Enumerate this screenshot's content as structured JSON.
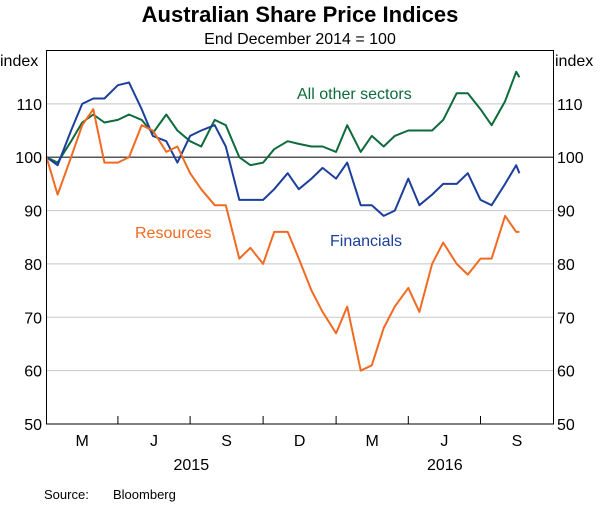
{
  "chart_data": {
    "type": "line",
    "title": "Australian Share Price Indices",
    "subtitle": "End December 2014 = 100",
    "ylabel_left": "index",
    "ylabel_right": "index",
    "ylim": [
      50,
      120
    ],
    "yticks": [
      50,
      60,
      70,
      80,
      90,
      100,
      110
    ],
    "xlim": [
      "2015-01-01",
      "2016-10-01"
    ],
    "xtick_months": [
      "M",
      "J",
      "S",
      "D",
      "M",
      "J",
      "S"
    ],
    "xtick_years": [
      "2015",
      "2016"
    ],
    "grid": true,
    "reference_line": 100,
    "source_label": "Source:",
    "source": "Bloomberg",
    "x": [
      "2015-01-01",
      "2015-01-15",
      "2015-02-01",
      "2015-02-15",
      "2015-03-01",
      "2015-03-15",
      "2015-04-01",
      "2015-04-15",
      "2015-05-01",
      "2015-05-15",
      "2015-06-01",
      "2015-06-15",
      "2015-07-01",
      "2015-07-15",
      "2015-08-01",
      "2015-08-15",
      "2015-09-01",
      "2015-09-15",
      "2015-10-01",
      "2015-10-15",
      "2015-11-01",
      "2015-11-15",
      "2015-12-01",
      "2015-12-15",
      "2016-01-01",
      "2016-01-15",
      "2016-02-01",
      "2016-02-15",
      "2016-03-01",
      "2016-03-15",
      "2016-04-01",
      "2016-04-15",
      "2016-05-01",
      "2016-05-15",
      "2016-06-01",
      "2016-06-15",
      "2016-07-01",
      "2016-07-15",
      "2016-08-01",
      "2016-08-15",
      "2016-08-19"
    ],
    "series": [
      {
        "name": "All other sectors",
        "color": "#0e6b3b",
        "values": [
          100,
          99,
          103,
          106.5,
          108,
          106.5,
          107,
          108,
          107,
          104.5,
          108,
          105,
          103,
          102,
          107,
          106,
          100,
          98.5,
          99,
          101.5,
          103,
          102.5,
          102,
          102,
          101,
          106,
          101,
          104,
          102,
          104,
          105,
          105,
          105,
          107,
          112,
          112,
          109,
          106,
          110.5,
          116,
          115
        ]
      },
      {
        "name": "Financials",
        "color": "#1c3f9c",
        "values": [
          100,
          98.5,
          105,
          110,
          111,
          111,
          113.5,
          114,
          109,
          104,
          103,
          99,
          104,
          105,
          106,
          102,
          92,
          92,
          92,
          94,
          97,
          94,
          96,
          98,
          96,
          99,
          91,
          91,
          89,
          90,
          96,
          91,
          93,
          95,
          95,
          97,
          92,
          91,
          95,
          98.5,
          97
        ]
      },
      {
        "name": "Resources",
        "color": "#f26a22",
        "values": [
          100,
          93,
          100,
          106,
          109,
          99,
          99,
          100,
          106,
          105,
          101,
          102,
          97,
          94,
          91,
          91,
          81,
          83,
          80,
          86,
          86,
          81,
          75,
          71,
          67,
          72,
          60,
          61,
          68,
          72,
          75.5,
          71,
          80,
          84,
          80,
          78,
          81,
          81,
          89,
          86,
          86
        ]
      }
    ]
  }
}
